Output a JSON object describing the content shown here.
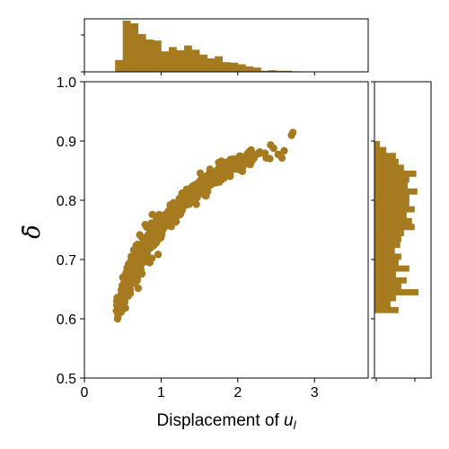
{
  "chart_data": {
    "type": "scatter",
    "title": "",
    "xlabel": "Displacement of ",
    "xlabel_var": "u",
    "xlabel_sub": "l",
    "ylabel": "δ̄",
    "xlim": [
      0,
      3.7
    ],
    "ylim": [
      0.5,
      1.0
    ],
    "xticks": [
      "0",
      "1",
      "2",
      "3"
    ],
    "xtick_values": [
      0,
      1,
      2,
      3
    ],
    "yticks": [
      "0.5",
      "0.6",
      "0.7",
      "0.8",
      "0.9",
      "1.0"
    ],
    "ytick_values": [
      0.5,
      0.6,
      0.7,
      0.8,
      0.9,
      1.0
    ],
    "marker_color": "#a67a1f",
    "hist_color": "#a67a1f",
    "grid": false,
    "legend": "none",
    "curve": {
      "description_points": [
        [
          0.4,
          0.61
        ],
        [
          0.5,
          0.64
        ],
        [
          0.6,
          0.675
        ],
        [
          0.7,
          0.7
        ],
        [
          0.8,
          0.72
        ],
        [
          0.9,
          0.74
        ],
        [
          1.0,
          0.755
        ],
        [
          1.2,
          0.785
        ],
        [
          1.4,
          0.81
        ],
        [
          1.6,
          0.83
        ],
        [
          1.8,
          0.848
        ],
        [
          2.0,
          0.862
        ],
        [
          2.2,
          0.873
        ],
        [
          2.4,
          0.882
        ],
        [
          2.6,
          0.892
        ],
        [
          2.75,
          0.905
        ]
      ]
    },
    "top_histogram": {
      "bin_edges": [
        0.4,
        0.5,
        0.6,
        0.7,
        0.8,
        0.9,
        1.0,
        1.1,
        1.2,
        1.3,
        1.4,
        1.5,
        1.6,
        1.7,
        1.8,
        1.9,
        2.0,
        2.1,
        2.2,
        2.3,
        2.4,
        2.5,
        2.6,
        2.7,
        2.8
      ],
      "counts": [
        22,
        95,
        90,
        70,
        60,
        58,
        38,
        46,
        40,
        49,
        41,
        32,
        25,
        29,
        18,
        17,
        14,
        10,
        8,
        2,
        3,
        2,
        2,
        1
      ]
    },
    "right_histogram": {
      "bin_edges": [
        0.61,
        0.62,
        0.63,
        0.64,
        0.65,
        0.66,
        0.67,
        0.68,
        0.69,
        0.7,
        0.71,
        0.72,
        0.73,
        0.74,
        0.75,
        0.76,
        0.77,
        0.78,
        0.79,
        0.8,
        0.81,
        0.82,
        0.83,
        0.84,
        0.85,
        0.86,
        0.87,
        0.88,
        0.89,
        0.9
      ],
      "counts": [
        45,
        30,
        40,
        82,
        50,
        60,
        40,
        65,
        45,
        50,
        38,
        48,
        50,
        55,
        75,
        70,
        60,
        75,
        65,
        65,
        80,
        62,
        65,
        78,
        55,
        45,
        40,
        22,
        10
      ]
    }
  }
}
